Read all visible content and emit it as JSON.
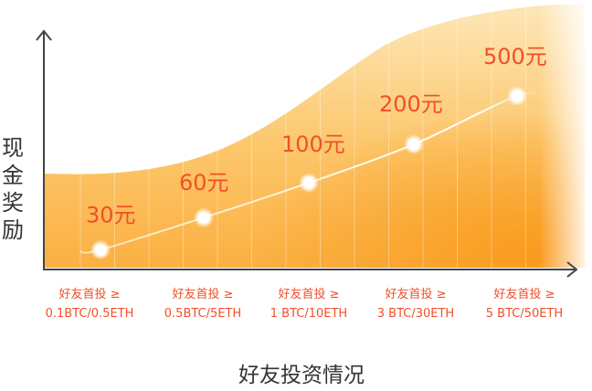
{
  "chart_data": {
    "type": "line",
    "title": "",
    "xlabel": "好友投资情况",
    "ylabel": "现金奖励",
    "categories": [
      {
        "line1": "好友首投 ≥",
        "line2": "0.1BTC/0.5ETH"
      },
      {
        "line1": "好友首投 ≥",
        "line2": "0.5BTC/5ETH"
      },
      {
        "line1": "好友首投 ≥",
        "line2": "1 BTC/10ETH"
      },
      {
        "line1": "好友首投 ≥",
        "line2": "3 BTC/30ETH"
      },
      {
        "line1": "好友首投 ≥",
        "line2": "5 BTC/50ETH"
      }
    ],
    "values": [
      30,
      60,
      100,
      200,
      500
    ],
    "value_labels": [
      "30元",
      "60元",
      "100元",
      "200元",
      "500元"
    ],
    "grid": true,
    "legend": "none"
  },
  "colors": {
    "area_top": "#fde6b0",
    "area_bottom": "#fbb347",
    "area_hot": "#f99a1c",
    "accent_text": "#f0502a",
    "axis": "#444444"
  }
}
